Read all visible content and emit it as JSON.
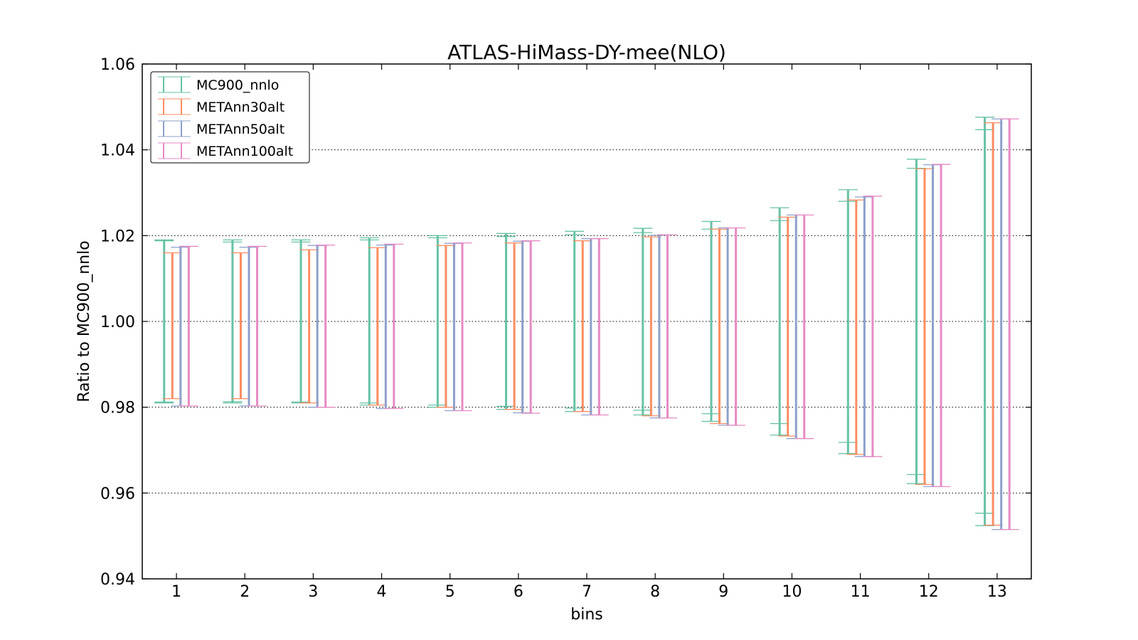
{
  "chart_data": {
    "type": "errorbar",
    "title": "ATLAS-HiMass-DY-mee(NLO)",
    "xlabel": "bins",
    "ylabel": "Ratio to MC900_nnlo",
    "ylim": [
      0.94,
      1.06
    ],
    "xlim": [
      0.5,
      13.5
    ],
    "yticks": [
      "0.94",
      "0.96",
      "0.98",
      "1.00",
      "1.02",
      "1.04",
      "1.06"
    ],
    "categories": [
      "1",
      "2",
      "3",
      "4",
      "5",
      "6",
      "7",
      "8",
      "9",
      "10",
      "11",
      "12",
      "13"
    ],
    "grid": "horizontal dotted",
    "legend_position": "top-left",
    "series": [
      {
        "name": "MC900_nnlo",
        "color": "#66c2a5",
        "outer_upper": [
          1.019,
          1.019,
          1.019,
          1.0195,
          1.02,
          1.0205,
          1.021,
          1.0217,
          1.0233,
          1.0265,
          1.0307,
          1.0378,
          1.0476
        ],
        "outer_lower": [
          0.981,
          0.981,
          0.981,
          0.9805,
          0.98,
          0.9795,
          0.979,
          0.9782,
          0.9767,
          0.9735,
          0.9692,
          0.9622,
          0.9524
        ],
        "inner_upper": [
          1.0188,
          1.0185,
          1.0185,
          1.019,
          1.0195,
          1.0198,
          1.0202,
          1.0207,
          1.0215,
          1.0235,
          1.028,
          1.0357,
          1.0447
        ],
        "inner_lower": [
          0.9812,
          0.9813,
          0.9812,
          0.981,
          0.9805,
          0.9802,
          0.9798,
          0.9793,
          0.9785,
          0.9762,
          0.9718,
          0.9643,
          0.9553
        ]
      },
      {
        "name": "METAnn30alt",
        "color": "#fc8d62",
        "upper": [
          1.016,
          1.016,
          1.0167,
          1.0172,
          1.0177,
          1.0183,
          1.0188,
          1.0197,
          1.0215,
          1.0243,
          1.0283,
          1.0356,
          1.0463
        ],
        "lower": [
          0.982,
          0.982,
          0.981,
          0.9805,
          0.98,
          0.9795,
          0.979,
          0.978,
          0.9762,
          0.9733,
          0.969,
          0.962,
          0.9525
        ]
      },
      {
        "name": "METAnn50alt",
        "color": "#8da0cb",
        "upper": [
          1.0173,
          1.0173,
          1.0177,
          1.0178,
          1.0182,
          1.0187,
          1.0193,
          1.0201,
          1.0218,
          1.0248,
          1.029,
          1.0365,
          1.0472
        ],
        "lower": [
          0.9803,
          0.9803,
          0.98,
          0.9797,
          0.9792,
          0.9787,
          0.9782,
          0.9775,
          0.9758,
          0.9727,
          0.9685,
          0.9615,
          0.9515
        ]
      },
      {
        "name": "METAnn100alt",
        "color": "#e78ac3",
        "upper": [
          1.0175,
          1.0175,
          1.0178,
          1.018,
          1.0183,
          1.0188,
          1.0193,
          1.0202,
          1.0218,
          1.0248,
          1.0292,
          1.0366,
          1.0472
        ],
        "lower": [
          0.9803,
          0.9803,
          0.98,
          0.9797,
          0.9792,
          0.9786,
          0.9782,
          0.9775,
          0.9758,
          0.9727,
          0.9685,
          0.9615,
          0.9515
        ]
      }
    ]
  }
}
